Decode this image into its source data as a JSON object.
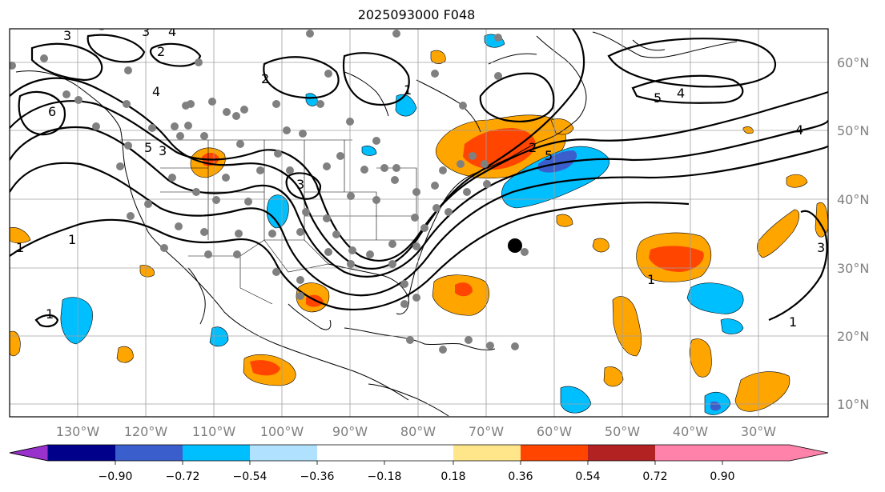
{
  "title": "2025093000 F048",
  "lat_labels": [
    "60°N",
    "50°N",
    "40°N",
    "30°N",
    "20°N",
    "10°N"
  ],
  "lon_labels": [
    "130°W",
    "120°W",
    "110°W",
    "100°W",
    "90°W",
    "80°W",
    "70°W",
    "60°W",
    "50°W",
    "40°W",
    "30°W"
  ],
  "contour_labels": [
    "3",
    "3",
    "2",
    "4",
    "4",
    "6",
    "5",
    "3",
    "2",
    "1",
    "3",
    "1",
    "1",
    "1",
    "2",
    "5",
    "5",
    "4",
    "4",
    "3",
    "1",
    "1"
  ],
  "colorbar": {
    "ticks": [
      "−0.90",
      "−0.72",
      "−0.54",
      "−0.36",
      "−0.18",
      "0.18",
      "0.36",
      "0.54",
      "0.72",
      "0.90"
    ],
    "colors": [
      "#9932cc",
      "#00008b",
      "#3a5fcd",
      "#00bfff",
      "#b0e2ff",
      "#ffffff",
      "#ffe68a",
      "#ffa500",
      "#ff4500",
      "#b22222",
      "#ff82ab"
    ]
  }
}
